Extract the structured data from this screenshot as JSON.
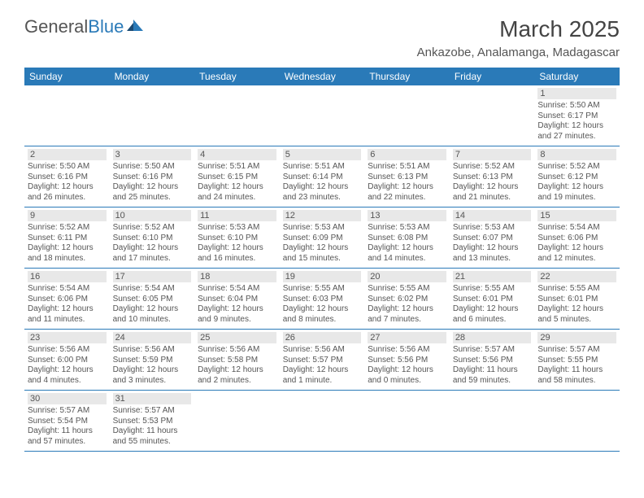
{
  "logo": {
    "word1": "General",
    "word2": "Blue"
  },
  "title": "March 2025",
  "location": "Ankazobe, Analamanga, Madagascar",
  "colors": {
    "header_bg": "#2a7ab8",
    "header_text": "#ffffff",
    "text": "#555555",
    "daybg": "#e8e8e8",
    "border": "#2a7ab8"
  },
  "dayNames": [
    "Sunday",
    "Monday",
    "Tuesday",
    "Wednesday",
    "Thursday",
    "Friday",
    "Saturday"
  ],
  "weeks": [
    [
      null,
      null,
      null,
      null,
      null,
      null,
      {
        "n": "1",
        "sr": "5:50 AM",
        "ss": "6:17 PM",
        "dl": "12 hours and 27 minutes."
      }
    ],
    [
      {
        "n": "2",
        "sr": "5:50 AM",
        "ss": "6:16 PM",
        "dl": "12 hours and 26 minutes."
      },
      {
        "n": "3",
        "sr": "5:50 AM",
        "ss": "6:16 PM",
        "dl": "12 hours and 25 minutes."
      },
      {
        "n": "4",
        "sr": "5:51 AM",
        "ss": "6:15 PM",
        "dl": "12 hours and 24 minutes."
      },
      {
        "n": "5",
        "sr": "5:51 AM",
        "ss": "6:14 PM",
        "dl": "12 hours and 23 minutes."
      },
      {
        "n": "6",
        "sr": "5:51 AM",
        "ss": "6:13 PM",
        "dl": "12 hours and 22 minutes."
      },
      {
        "n": "7",
        "sr": "5:52 AM",
        "ss": "6:13 PM",
        "dl": "12 hours and 21 minutes."
      },
      {
        "n": "8",
        "sr": "5:52 AM",
        "ss": "6:12 PM",
        "dl": "12 hours and 19 minutes."
      }
    ],
    [
      {
        "n": "9",
        "sr": "5:52 AM",
        "ss": "6:11 PM",
        "dl": "12 hours and 18 minutes."
      },
      {
        "n": "10",
        "sr": "5:52 AM",
        "ss": "6:10 PM",
        "dl": "12 hours and 17 minutes."
      },
      {
        "n": "11",
        "sr": "5:53 AM",
        "ss": "6:10 PM",
        "dl": "12 hours and 16 minutes."
      },
      {
        "n": "12",
        "sr": "5:53 AM",
        "ss": "6:09 PM",
        "dl": "12 hours and 15 minutes."
      },
      {
        "n": "13",
        "sr": "5:53 AM",
        "ss": "6:08 PM",
        "dl": "12 hours and 14 minutes."
      },
      {
        "n": "14",
        "sr": "5:53 AM",
        "ss": "6:07 PM",
        "dl": "12 hours and 13 minutes."
      },
      {
        "n": "15",
        "sr": "5:54 AM",
        "ss": "6:06 PM",
        "dl": "12 hours and 12 minutes."
      }
    ],
    [
      {
        "n": "16",
        "sr": "5:54 AM",
        "ss": "6:06 PM",
        "dl": "12 hours and 11 minutes."
      },
      {
        "n": "17",
        "sr": "5:54 AM",
        "ss": "6:05 PM",
        "dl": "12 hours and 10 minutes."
      },
      {
        "n": "18",
        "sr": "5:54 AM",
        "ss": "6:04 PM",
        "dl": "12 hours and 9 minutes."
      },
      {
        "n": "19",
        "sr": "5:55 AM",
        "ss": "6:03 PM",
        "dl": "12 hours and 8 minutes."
      },
      {
        "n": "20",
        "sr": "5:55 AM",
        "ss": "6:02 PM",
        "dl": "12 hours and 7 minutes."
      },
      {
        "n": "21",
        "sr": "5:55 AM",
        "ss": "6:01 PM",
        "dl": "12 hours and 6 minutes."
      },
      {
        "n": "22",
        "sr": "5:55 AM",
        "ss": "6:01 PM",
        "dl": "12 hours and 5 minutes."
      }
    ],
    [
      {
        "n": "23",
        "sr": "5:56 AM",
        "ss": "6:00 PM",
        "dl": "12 hours and 4 minutes."
      },
      {
        "n": "24",
        "sr": "5:56 AM",
        "ss": "5:59 PM",
        "dl": "12 hours and 3 minutes."
      },
      {
        "n": "25",
        "sr": "5:56 AM",
        "ss": "5:58 PM",
        "dl": "12 hours and 2 minutes."
      },
      {
        "n": "26",
        "sr": "5:56 AM",
        "ss": "5:57 PM",
        "dl": "12 hours and 1 minute."
      },
      {
        "n": "27",
        "sr": "5:56 AM",
        "ss": "5:56 PM",
        "dl": "12 hours and 0 minutes."
      },
      {
        "n": "28",
        "sr": "5:57 AM",
        "ss": "5:56 PM",
        "dl": "11 hours and 59 minutes."
      },
      {
        "n": "29",
        "sr": "5:57 AM",
        "ss": "5:55 PM",
        "dl": "11 hours and 58 minutes."
      }
    ],
    [
      {
        "n": "30",
        "sr": "5:57 AM",
        "ss": "5:54 PM",
        "dl": "11 hours and 57 minutes."
      },
      {
        "n": "31",
        "sr": "5:57 AM",
        "ss": "5:53 PM",
        "dl": "11 hours and 55 minutes."
      },
      null,
      null,
      null,
      null,
      null
    ]
  ],
  "labels": {
    "sunrise": "Sunrise:",
    "sunset": "Sunset:",
    "daylight": "Daylight:"
  }
}
